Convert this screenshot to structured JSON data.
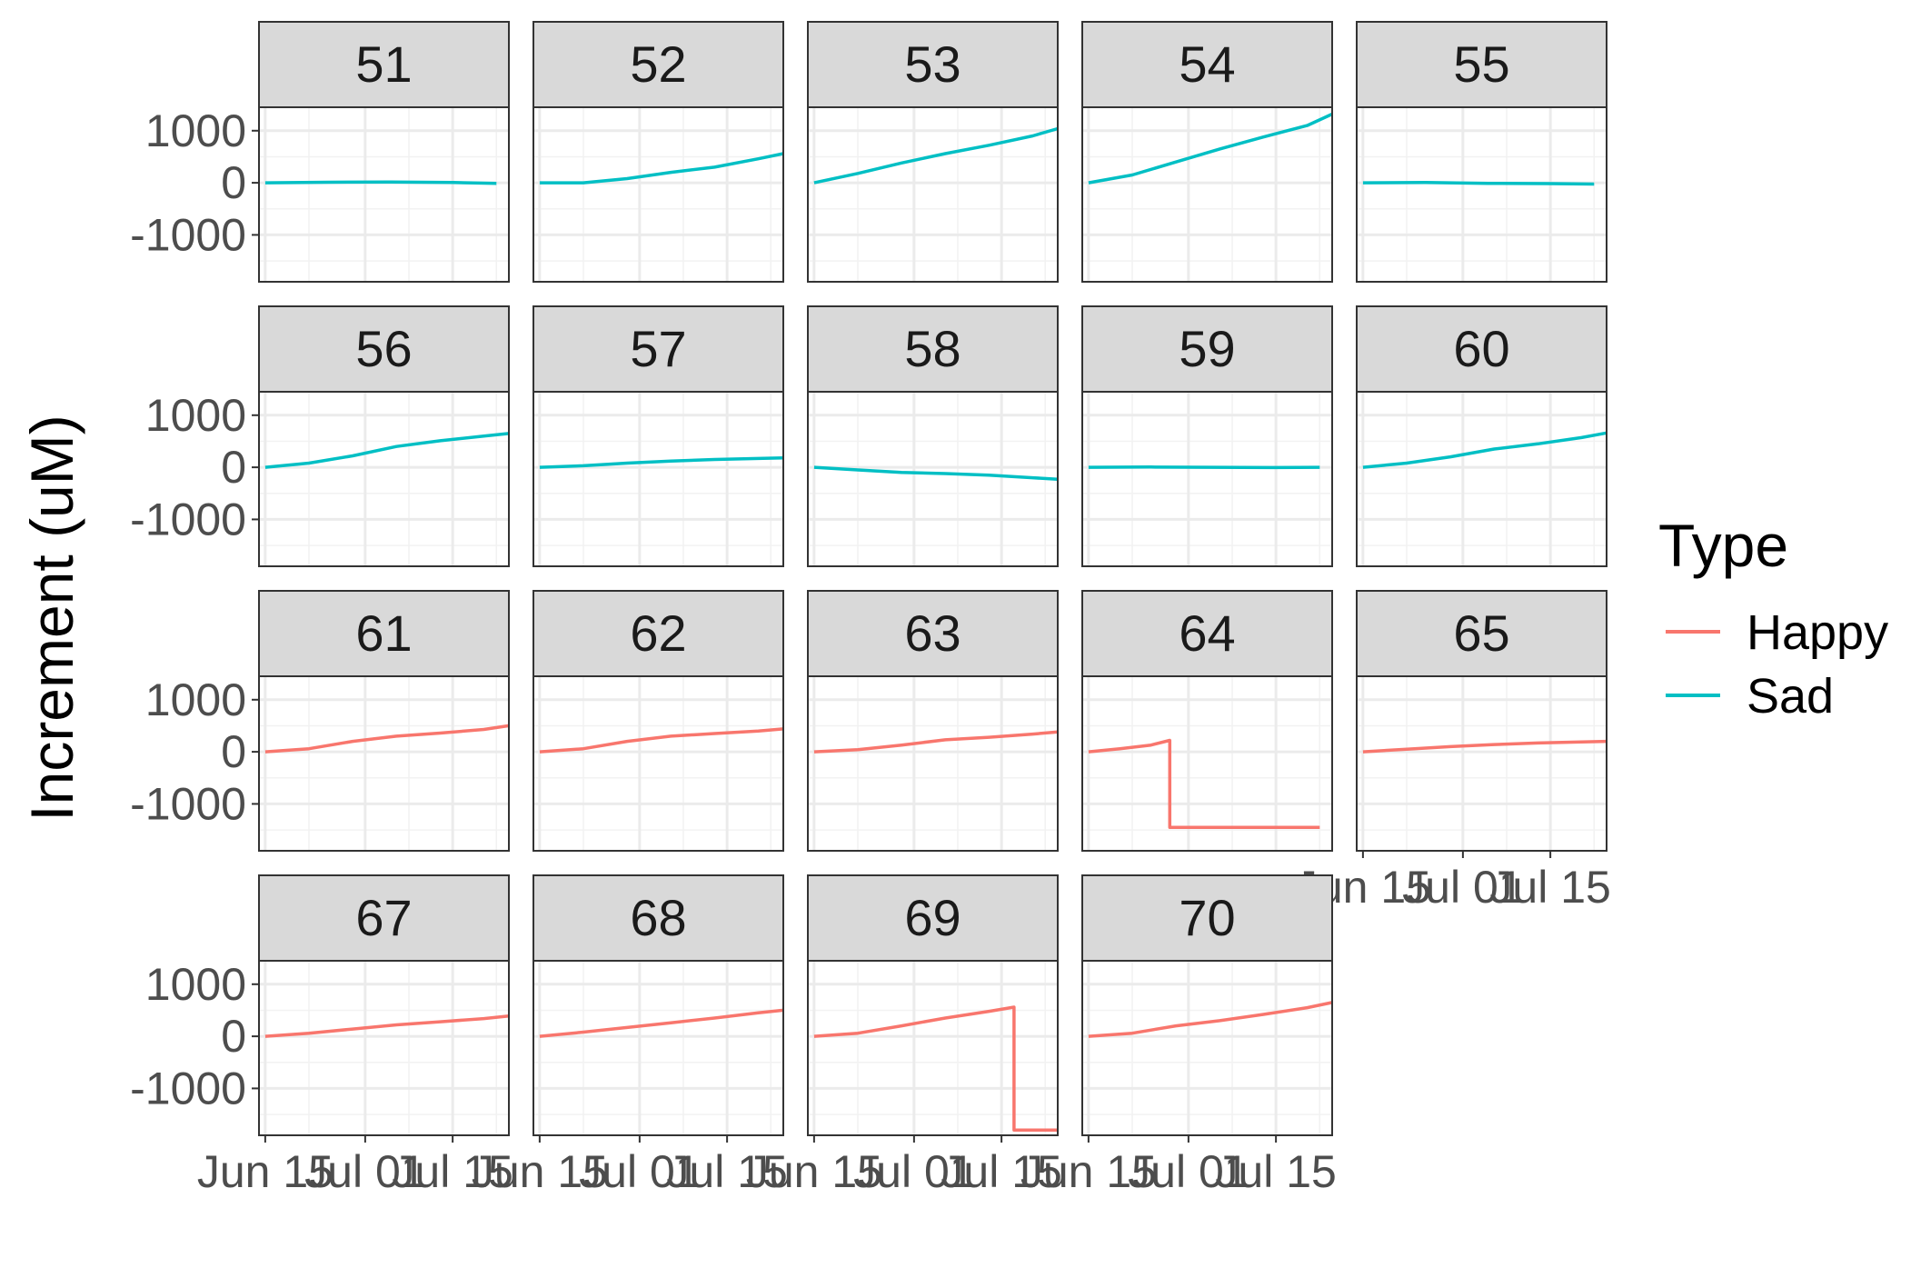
{
  "chart_data": {
    "type": "line",
    "layout": "facet_wrap",
    "ylabel": "Increment (uM)",
    "xlabel": "",
    "x_ticks": [
      "Jun 15",
      "Jul 01",
      "Jul 15"
    ],
    "x_range": [
      "2023-06-14",
      "2023-07-24"
    ],
    "y_ticks": [
      "1000",
      "0",
      "-1000"
    ],
    "y_tick_values": [
      1000,
      0,
      -1000
    ],
    "ylim": [
      -1900,
      1450
    ],
    "grid": true,
    "legend": {
      "title": "Type",
      "position": "right",
      "entries": [
        {
          "name": "Happy",
          "color": "#F8766D"
        },
        {
          "name": "Sad",
          "color": "#00BFC4"
        }
      ]
    },
    "panels": [
      {
        "label": "51",
        "type": "Sad",
        "x": [
          "2023-06-15",
          "2023-06-25",
          "2023-07-05",
          "2023-07-15",
          "2023-07-22"
        ],
        "y": [
          0,
          10,
          15,
          5,
          -10
        ]
      },
      {
        "label": "52",
        "type": "Sad",
        "x": [
          "2023-06-15",
          "2023-06-22",
          "2023-06-29",
          "2023-07-06",
          "2023-07-13",
          "2023-07-20",
          "2023-07-24"
        ],
        "y": [
          0,
          0,
          80,
          200,
          300,
          460,
          560
        ]
      },
      {
        "label": "53",
        "type": "Sad",
        "x": [
          "2023-06-15",
          "2023-06-22",
          "2023-06-29",
          "2023-07-06",
          "2023-07-13",
          "2023-07-20",
          "2023-07-24"
        ],
        "y": [
          0,
          180,
          380,
          560,
          720,
          900,
          1040
        ]
      },
      {
        "label": "54",
        "type": "Sad",
        "x": [
          "2023-06-15",
          "2023-06-22",
          "2023-06-29",
          "2023-07-06",
          "2023-07-13",
          "2023-07-20",
          "2023-07-24"
        ],
        "y": [
          0,
          150,
          400,
          650,
          880,
          1100,
          1320
        ]
      },
      {
        "label": "55",
        "type": "Sad",
        "x": [
          "2023-06-15",
          "2023-06-25",
          "2023-07-05",
          "2023-07-15",
          "2023-07-22"
        ],
        "y": [
          0,
          5,
          -10,
          -15,
          -25
        ]
      },
      {
        "label": "56",
        "type": "Sad",
        "x": [
          "2023-06-15",
          "2023-06-22",
          "2023-06-29",
          "2023-07-06",
          "2023-07-13",
          "2023-07-20",
          "2023-07-24"
        ],
        "y": [
          0,
          80,
          220,
          400,
          510,
          600,
          650
        ]
      },
      {
        "label": "57",
        "type": "Sad",
        "x": [
          "2023-06-15",
          "2023-06-22",
          "2023-06-29",
          "2023-07-06",
          "2023-07-13",
          "2023-07-20",
          "2023-07-24"
        ],
        "y": [
          0,
          30,
          80,
          120,
          150,
          170,
          180
        ]
      },
      {
        "label": "58",
        "type": "Sad",
        "x": [
          "2023-06-15",
          "2023-06-22",
          "2023-06-29",
          "2023-07-06",
          "2023-07-13",
          "2023-07-20",
          "2023-07-24"
        ],
        "y": [
          0,
          -50,
          -100,
          -120,
          -150,
          -200,
          -230
        ]
      },
      {
        "label": "59",
        "type": "Sad",
        "x": [
          "2023-06-15",
          "2023-06-25",
          "2023-07-05",
          "2023-07-15",
          "2023-07-22"
        ],
        "y": [
          0,
          5,
          0,
          -5,
          0
        ]
      },
      {
        "label": "60",
        "type": "Sad",
        "x": [
          "2023-06-15",
          "2023-06-22",
          "2023-06-29",
          "2023-07-06",
          "2023-07-13",
          "2023-07-20",
          "2023-07-24"
        ],
        "y": [
          0,
          80,
          200,
          350,
          450,
          570,
          660
        ]
      },
      {
        "label": "61",
        "type": "Happy",
        "x": [
          "2023-06-15",
          "2023-06-22",
          "2023-06-29",
          "2023-07-06",
          "2023-07-13",
          "2023-07-20",
          "2023-07-24"
        ],
        "y": [
          0,
          60,
          200,
          300,
          360,
          430,
          500
        ]
      },
      {
        "label": "62",
        "type": "Happy",
        "x": [
          "2023-06-15",
          "2023-06-22",
          "2023-06-29",
          "2023-07-06",
          "2023-07-13",
          "2023-07-20",
          "2023-07-24"
        ],
        "y": [
          0,
          60,
          200,
          300,
          350,
          400,
          440
        ]
      },
      {
        "label": "63",
        "type": "Happy",
        "x": [
          "2023-06-15",
          "2023-06-22",
          "2023-06-29",
          "2023-07-06",
          "2023-07-13",
          "2023-07-20",
          "2023-07-24"
        ],
        "y": [
          0,
          40,
          130,
          230,
          280,
          340,
          380
        ]
      },
      {
        "label": "64",
        "type": "Happy",
        "x": [
          "2023-06-15",
          "2023-06-20",
          "2023-06-25",
          "2023-06-28",
          "2023-06-28",
          "2023-07-22"
        ],
        "y": [
          0,
          60,
          130,
          220,
          -1450,
          -1450
        ]
      },
      {
        "label": "65",
        "type": "Happy",
        "x": [
          "2023-06-15",
          "2023-06-22",
          "2023-06-29",
          "2023-07-06",
          "2023-07-13",
          "2023-07-20",
          "2023-07-24"
        ],
        "y": [
          0,
          50,
          100,
          140,
          170,
          190,
          200
        ]
      },
      {
        "label": "67",
        "type": "Happy",
        "x": [
          "2023-06-15",
          "2023-06-22",
          "2023-06-29",
          "2023-07-06",
          "2023-07-13",
          "2023-07-20",
          "2023-07-24"
        ],
        "y": [
          0,
          60,
          140,
          220,
          280,
          340,
          390
        ]
      },
      {
        "label": "68",
        "type": "Happy",
        "x": [
          "2023-06-15",
          "2023-06-22",
          "2023-06-29",
          "2023-07-06",
          "2023-07-13",
          "2023-07-20",
          "2023-07-24"
        ],
        "y": [
          0,
          80,
          170,
          260,
          350,
          450,
          500
        ]
      },
      {
        "label": "69",
        "type": "Happy",
        "x": [
          "2023-06-15",
          "2023-06-22",
          "2023-06-29",
          "2023-07-06",
          "2023-07-13",
          "2023-07-17",
          "2023-07-17",
          "2023-07-24"
        ],
        "y": [
          0,
          60,
          200,
          350,
          480,
          560,
          -1800,
          -1800
        ]
      },
      {
        "label": "70",
        "type": "Happy",
        "x": [
          "2023-06-15",
          "2023-06-22",
          "2023-06-29",
          "2023-07-06",
          "2023-07-13",
          "2023-07-20",
          "2023-07-24"
        ],
        "y": [
          0,
          60,
          200,
          300,
          420,
          550,
          650
        ]
      }
    ]
  }
}
